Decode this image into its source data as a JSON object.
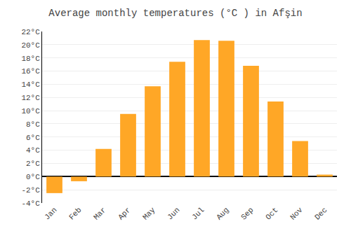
{
  "chart_data": {
    "type": "bar",
    "title": "Average monthly temperatures (°C ) in Afşin",
    "categories": [
      "Jan",
      "Feb",
      "Mar",
      "Apr",
      "May",
      "Jun",
      "Jul",
      "Aug",
      "Sep",
      "Oct",
      "Nov",
      "Dec"
    ],
    "values": [
      -2.5,
      -0.7,
      4.2,
      9.5,
      13.7,
      17.4,
      20.7,
      20.6,
      16.8,
      11.4,
      5.4,
      0.3
    ],
    "color": "#FFA726",
    "ylim": [
      -4,
      22
    ],
    "yticks": [
      {
        "value": -4,
        "label": "-4°C"
      },
      {
        "value": -2,
        "label": "-2°C"
      },
      {
        "value": 0,
        "label": "0°C"
      },
      {
        "value": 2,
        "label": "2°C"
      },
      {
        "value": 4,
        "label": "4°C"
      },
      {
        "value": 6,
        "label": "6°C"
      },
      {
        "value": 8,
        "label": "8°C"
      },
      {
        "value": 10,
        "label": "10°C"
      },
      {
        "value": 12,
        "label": "12°C"
      },
      {
        "value": 14,
        "label": "14°C"
      },
      {
        "value": 16,
        "label": "16°C"
      },
      {
        "value": 18,
        "label": "18°C"
      },
      {
        "value": 20,
        "label": "20°C"
      },
      {
        "value": 22,
        "label": "22°C"
      }
    ],
    "grid": true
  }
}
